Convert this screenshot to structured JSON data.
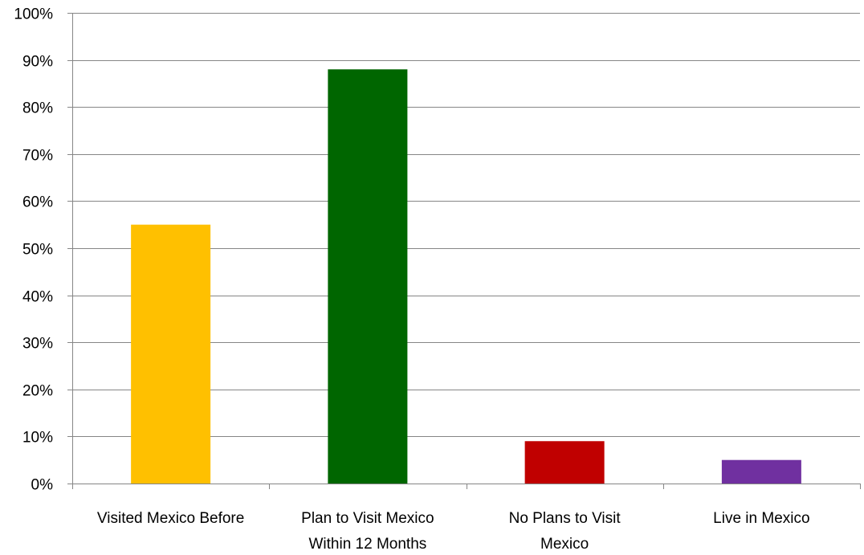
{
  "chart_data": {
    "type": "bar",
    "categories": [
      [
        "Visited Mexico Before"
      ],
      [
        "Plan to Visit Mexico",
        "Within 12 Months"
      ],
      [
        "No Plans to Visit",
        "Mexico"
      ],
      [
        "Live in Mexico"
      ]
    ],
    "values": [
      0.55,
      0.88,
      0.09,
      0.05
    ],
    "colors": [
      "#FFC000",
      "#006600",
      "#C00000",
      "#7030A0"
    ],
    "yticks": [
      "0%",
      "10%",
      "20%",
      "30%",
      "40%",
      "50%",
      "60%",
      "70%",
      "80%",
      "90%",
      "100%"
    ],
    "ylim": [
      0,
      1
    ],
    "grid": true,
    "title": "",
    "xlabel": "",
    "ylabel": ""
  }
}
